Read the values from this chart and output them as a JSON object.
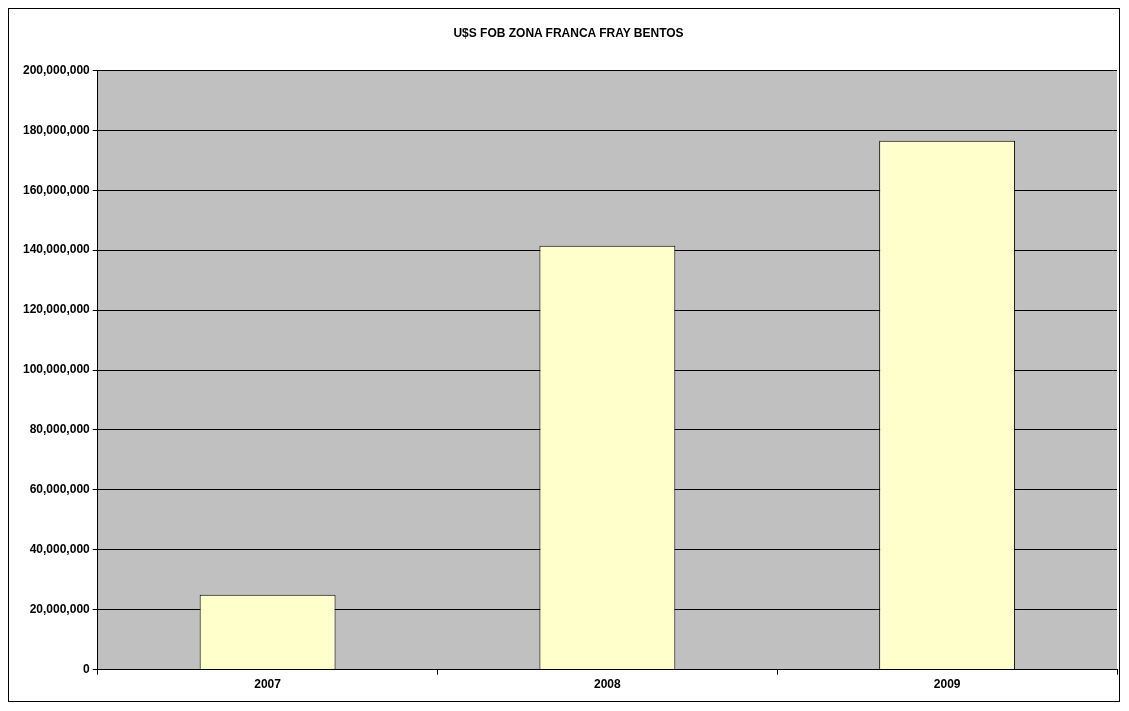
{
  "chart_data": {
    "type": "bar",
    "title": "U$S FOB ZONA FRANCA FRAY BENTOS",
    "categories": [
      "2007",
      "2008",
      "2009"
    ],
    "values": [
      25000000,
      141500000,
      176500000
    ],
    "color": "#ffffcc",
    "ylim": [
      0,
      200000000
    ],
    "yticks": [
      0,
      {
        "value": 20000000,
        "label": "20,000,000"
      },
      {
        "value": 40000000,
        "label": "40,000,000"
      },
      {
        "value": 60000000,
        "label": "60,000,000"
      },
      {
        "value": 80000000,
        "label": "80,000,000"
      },
      {
        "value": 100000000,
        "label": "100,000,000"
      },
      {
        "value": 120000000,
        "label": "120,000,000"
      },
      {
        "value": 140000000,
        "label": "140,000,000"
      },
      {
        "value": 160000000,
        "label": "160,000,000"
      },
      {
        "value": 180000000,
        "label": "180,000,000"
      },
      {
        "value": 200000000,
        "label": "200,000,000"
      }
    ],
    "grid": "y",
    "legend": false
  }
}
